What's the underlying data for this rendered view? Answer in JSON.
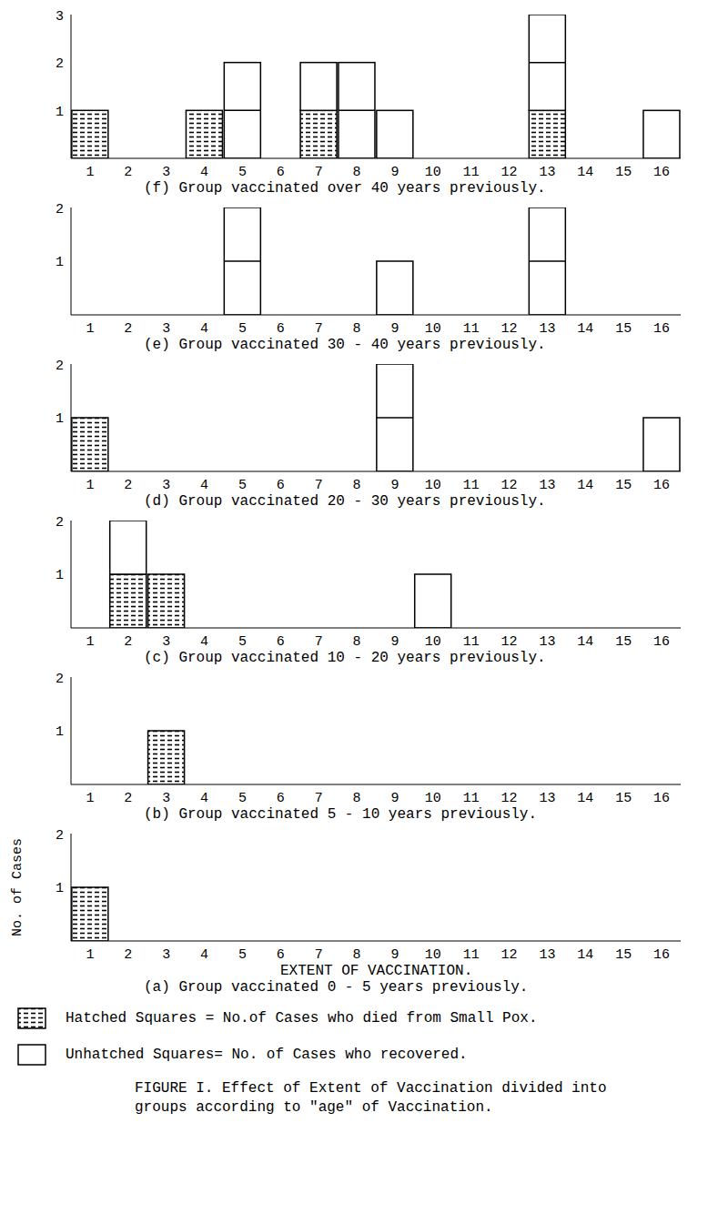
{
  "chart_data": [
    {
      "type": "bar",
      "title": "(f) Group vaccinated over 40 years previously.",
      "stacked": true,
      "categories": [
        1,
        2,
        3,
        4,
        5,
        6,
        7,
        8,
        9,
        10,
        11,
        12,
        13,
        14,
        15,
        16
      ],
      "series": [
        {
          "name": "Hatched Squares = No.of Cases who died from Small Pox.",
          "color": "#000000",
          "marker": "hatched",
          "values": [
            1,
            0,
            0,
            1,
            0,
            0,
            1,
            0,
            0,
            0,
            0,
            0,
            1,
            0,
            0,
            0
          ]
        },
        {
          "name": "Unhatched Squares= No. of Cases who recovered.",
          "color": "#ffffff",
          "marker": "none",
          "values": [
            0,
            0,
            0,
            0,
            2,
            0,
            1,
            2,
            1,
            0,
            0,
            0,
            2,
            0,
            0,
            1
          ]
        }
      ],
      "ylim": [
        0,
        3
      ],
      "yticks": [
        1,
        2,
        3
      ]
    },
    {
      "type": "bar",
      "title": "(e) Group vaccinated 30 - 40 years previously.",
      "stacked": true,
      "categories": [
        1,
        2,
        3,
        4,
        5,
        6,
        7,
        8,
        9,
        10,
        11,
        12,
        13,
        14,
        15,
        16
      ],
      "series": [
        {
          "name": "Hatched Squares = No.of Cases who died from Small Pox.",
          "color": "#000000",
          "marker": "hatched",
          "values": [
            0,
            0,
            0,
            0,
            0,
            0,
            0,
            0,
            0,
            0,
            0,
            0,
            0,
            0,
            0,
            0
          ]
        },
        {
          "name": "Unhatched Squares= No. of Cases who recovered.",
          "color": "#ffffff",
          "marker": "none",
          "values": [
            0,
            0,
            0,
            0,
            2,
            0,
            0,
            0,
            1,
            0,
            0,
            0,
            2,
            0,
            0,
            0
          ]
        }
      ],
      "ylim": [
        0,
        2
      ],
      "yticks": [
        1,
        2
      ]
    },
    {
      "type": "bar",
      "title": "(d) Group vaccinated 20 - 30 years previously.",
      "stacked": true,
      "categories": [
        1,
        2,
        3,
        4,
        5,
        6,
        7,
        8,
        9,
        10,
        11,
        12,
        13,
        14,
        15,
        16
      ],
      "series": [
        {
          "name": "Hatched Squares = No.of Cases who died from Small Pox.",
          "color": "#000000",
          "marker": "hatched",
          "values": [
            1,
            0,
            0,
            0,
            0,
            0,
            0,
            0,
            0,
            0,
            0,
            0,
            0,
            0,
            0,
            0
          ]
        },
        {
          "name": "Unhatched Squares= No. of Cases who recovered.",
          "color": "#ffffff",
          "marker": "none",
          "values": [
            0,
            0,
            0,
            0,
            0,
            0,
            0,
            0,
            2,
            0,
            0,
            0,
            0,
            0,
            0,
            1
          ]
        }
      ],
      "ylim": [
        0,
        2
      ],
      "yticks": [
        1,
        2
      ]
    },
    {
      "type": "bar",
      "title": "(c) Group vaccinated 10 - 20 years previously.",
      "stacked": true,
      "categories": [
        1,
        2,
        3,
        4,
        5,
        6,
        7,
        8,
        9,
        10,
        11,
        12,
        13,
        14,
        15,
        16
      ],
      "series": [
        {
          "name": "Hatched Squares = No.of Cases who died from Small Pox.",
          "color": "#000000",
          "marker": "hatched",
          "values": [
            0,
            1,
            1,
            0,
            0,
            0,
            0,
            0,
            0,
            0,
            0,
            0,
            0,
            0,
            0,
            0
          ]
        },
        {
          "name": "Unhatched Squares= No. of Cases who recovered.",
          "color": "#ffffff",
          "marker": "none",
          "values": [
            0,
            1,
            0,
            0,
            0,
            0,
            0,
            0,
            0,
            1,
            0,
            0,
            0,
            0,
            0,
            0
          ]
        }
      ],
      "ylim": [
        0,
        2
      ],
      "yticks": [
        1,
        2
      ]
    },
    {
      "type": "bar",
      "title": "(b) Group vaccinated 5 - 10 years previously.",
      "stacked": true,
      "categories": [
        1,
        2,
        3,
        4,
        5,
        6,
        7,
        8,
        9,
        10,
        11,
        12,
        13,
        14,
        15,
        16
      ],
      "series": [
        {
          "name": "Hatched Squares = No.of Cases who died from Small Pox.",
          "color": "#000000",
          "marker": "hatched",
          "values": [
            0,
            0,
            1,
            0,
            0,
            0,
            0,
            0,
            0,
            0,
            0,
            0,
            0,
            0,
            0,
            0
          ]
        },
        {
          "name": "Unhatched Squares= No. of Cases who recovered.",
          "color": "#ffffff",
          "marker": "none",
          "values": [
            0,
            0,
            0,
            0,
            0,
            0,
            0,
            0,
            0,
            0,
            0,
            0,
            0,
            0,
            0,
            0
          ]
        }
      ],
      "ylim": [
        0,
        2
      ],
      "yticks": [
        1,
        2
      ]
    },
    {
      "type": "bar",
      "title": "(a) Group vaccinated 0 - 5 years previously.",
      "xlabel": "EXTENT OF VACCINATION.",
      "ylabel": "No. of Cases",
      "stacked": true,
      "categories": [
        1,
        2,
        3,
        4,
        5,
        6,
        7,
        8,
        9,
        10,
        11,
        12,
        13,
        14,
        15,
        16
      ],
      "series": [
        {
          "name": "Hatched Squares = No.of Cases who died from Small Pox.",
          "color": "#000000",
          "marker": "hatched",
          "values": [
            1,
            0,
            0,
            0,
            0,
            0,
            0,
            0,
            0,
            0,
            0,
            0,
            0,
            0,
            0,
            0
          ]
        },
        {
          "name": "Unhatched Squares= No. of Cases who recovered.",
          "color": "#ffffff",
          "marker": "none",
          "values": [
            0,
            0,
            0,
            0,
            0,
            0,
            0,
            0,
            0,
            0,
            0,
            0,
            0,
            0,
            0,
            0
          ]
        }
      ],
      "ylim": [
        0,
        2
      ],
      "yticks": [
        1,
        2
      ]
    }
  ],
  "caption": "FIGURE I. Effect of Extent of Vaccination divided into groups according to \"age\" of Vaccination."
}
